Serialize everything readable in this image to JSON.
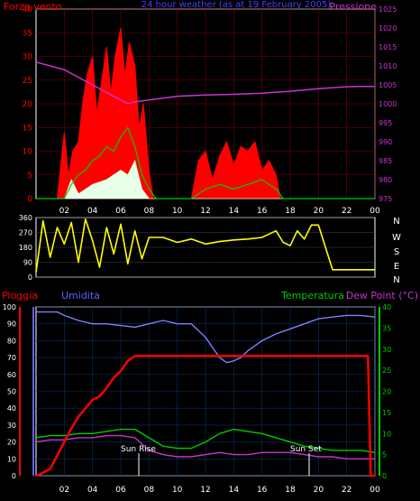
{
  "colors": {
    "wind": "#ff0000",
    "gust_green": "#00cc00",
    "gust_white": "#e8ffe8",
    "pressure": "#cc33cc",
    "direction": "#ffff00",
    "humidity": "#8080ff",
    "rain": "#ff0000",
    "temperature": "#00cc00",
    "dewpoint": "#cc33cc",
    "grid": "#7a0000",
    "axis_red": "#ff0000",
    "axis_blue": "#6060ff",
    "axis_green": "#00cc00",
    "axis_white": "#ffffff"
  },
  "header": {
    "left_title": "Forza vento",
    "center_title": "24 hour weather (as at 19 February 2005)",
    "right_title": "Pressione"
  },
  "direction_letters": [
    "N",
    "W",
    "S",
    "E",
    "N"
  ],
  "bottom_titles": {
    "rain": "Pioggia",
    "humidity": "Umidita",
    "temperature": "Temperatura",
    "dewpoint": "Dew Point (°C)"
  },
  "annotations": {
    "sun_rise": "Sun Rise",
    "sun_set": "Sun Set"
  },
  "chart_data": [
    {
      "type": "line",
      "panel": "wind-pressure",
      "x_ticks": [
        "02",
        "04",
        "06",
        "08",
        "10",
        "12",
        "14",
        "16",
        "18",
        "20",
        "22",
        "00"
      ],
      "ylim_left": [
        0,
        40
      ],
      "yticks_left": [
        0,
        5,
        10,
        15,
        20,
        25,
        30,
        35,
        40
      ],
      "ylim_right": [
        975,
        1025
      ],
      "yticks_right": [
        975,
        980,
        985,
        990,
        995,
        1000,
        1005,
        1010,
        1015,
        1020,
        1025
      ],
      "series": [
        {
          "name": "Pressione",
          "axis": "right",
          "x": [
            0,
            1,
            2,
            3,
            4,
            5,
            6,
            6.5,
            7,
            8,
            9,
            10,
            12,
            14,
            16,
            18,
            20,
            22,
            23,
            24
          ],
          "y": [
            1011,
            1010,
            1009,
            1007,
            1005,
            1003,
            1001,
            1000,
            1000.5,
            1001,
            1001.5,
            1002,
            1002.3,
            1002.5,
            1002.8,
            1003.3,
            1004,
            1004.5,
            1004.6,
            1004.6
          ]
        },
        {
          "name": "Forza vento",
          "axis": "left",
          "x": [
            0,
            1.5,
            2,
            2.3,
            2.6,
            3,
            3.3,
            3.6,
            4,
            4.3,
            4.6,
            5,
            5.3,
            5.6,
            6,
            6.3,
            6.6,
            7,
            7.3,
            7.6,
            8,
            8.3,
            11,
            11.5,
            12,
            12.5,
            13,
            13.5,
            14,
            14.5,
            15,
            15.5,
            16,
            16.5,
            17,
            17.3,
            24
          ],
          "y": [
            0,
            0,
            14,
            5,
            10,
            12,
            20,
            26,
            30,
            18,
            24,
            32,
            22,
            30,
            36,
            26,
            33,
            28,
            15,
            20,
            6,
            0,
            0,
            8,
            10,
            4,
            9,
            12,
            7,
            11,
            10,
            12,
            6,
            8,
            5,
            0,
            0
          ]
        },
        {
          "name": "",
          "axis": "left",
          "x": [
            0,
            2,
            2.5,
            3,
            3.5,
            4,
            4.5,
            5,
            5.5,
            6,
            6.5,
            7,
            7.5,
            8,
            8.5,
            11,
            12,
            13,
            14,
            15,
            16,
            17,
            17.5,
            24
          ],
          "y": [
            0,
            0,
            3,
            5,
            6,
            8,
            9,
            11,
            10,
            13,
            15,
            11,
            5,
            2,
            0,
            0,
            2,
            3,
            2,
            3,
            4,
            2,
            0,
            0
          ]
        },
        {
          "name": "",
          "axis": "left",
          "x": [
            0,
            2,
            2.5,
            3,
            4,
            5,
            6,
            6.5,
            7,
            7.5,
            8,
            24
          ],
          "y": [
            0,
            0,
            4,
            1,
            3,
            4,
            6,
            5,
            8,
            2,
            0,
            0
          ]
        }
      ]
    },
    {
      "type": "line",
      "panel": "direction",
      "ylim": [
        0,
        360
      ],
      "yticks": [
        0,
        90,
        180,
        270,
        360
      ],
      "series": [
        {
          "name": "",
          "x": [
            0,
            0.5,
            1,
            1.5,
            2,
            2.5,
            3,
            3.5,
            4,
            4.5,
            5,
            5.5,
            6,
            6.5,
            7,
            7.5,
            8,
            9,
            10,
            11,
            12,
            13,
            14,
            15,
            16,
            16.5,
            17,
            17.5,
            18,
            18.5,
            19,
            19.5,
            20,
            21,
            22,
            23,
            24
          ],
          "y": [
            30,
            340,
            120,
            300,
            200,
            330,
            90,
            350,
            220,
            60,
            300,
            140,
            320,
            80,
            280,
            110,
            240,
            240,
            210,
            230,
            200,
            215,
            225,
            230,
            240,
            260,
            280,
            210,
            190,
            280,
            230,
            315,
            315,
            45,
            45,
            45,
            45
          ]
        }
      ]
    },
    {
      "type": "line",
      "panel": "rain-humidity-temperature",
      "x_ticks": [
        "02",
        "04",
        "06",
        "08",
        "10",
        "12",
        "14",
        "16",
        "18",
        "20",
        "22",
        "00"
      ],
      "ylim_left": [
        0,
        100
      ],
      "yticks_left": [
        0,
        10,
        20,
        30,
        40,
        50,
        60,
        70,
        80,
        90,
        100
      ],
      "ylim_right": [
        0,
        40
      ],
      "yticks_right": [
        0,
        5,
        10,
        15,
        20,
        25,
        30,
        35,
        40
      ],
      "series": [
        {
          "name": "Umidita",
          "axis": "left",
          "x": [
            0,
            1.5,
            2,
            3,
            4,
            5,
            6,
            7,
            8,
            9,
            10,
            11,
            11.5,
            12,
            12.5,
            13,
            13.5,
            14,
            14.5,
            15,
            16,
            17,
            18,
            19,
            20,
            21,
            22,
            23,
            24
          ],
          "y": [
            97,
            97,
            95,
            92,
            90,
            90,
            89,
            88,
            90,
            92,
            90,
            90,
            86,
            82,
            76,
            70,
            67,
            68,
            70,
            74,
            80,
            84,
            87,
            90,
            93,
            94,
            95,
            95,
            94
          ]
        },
        {
          "name": "Pioggia",
          "axis": "left",
          "x": [
            0,
            0.3,
            1,
            2,
            2.5,
            3,
            3.5,
            4,
            4.5,
            5,
            5.5,
            6,
            6.5,
            7,
            8,
            9,
            10,
            12,
            14,
            16,
            18,
            20,
            22,
            23.5,
            23.7,
            24
          ],
          "y": [
            0,
            1,
            4,
            20,
            28,
            35,
            40,
            45,
            47,
            52,
            58,
            62,
            68,
            71,
            71,
            71,
            71,
            71,
            71,
            71,
            71,
            71,
            71,
            71,
            0,
            0
          ]
        },
        {
          "name": "Temperatura",
          "axis": "right",
          "x": [
            0,
            1,
            2,
            3,
            4,
            5,
            6,
            7,
            8,
            9,
            10,
            11,
            12,
            13,
            14,
            15,
            16,
            17,
            18,
            19,
            20,
            21,
            22,
            23,
            24
          ],
          "y": [
            9,
            9.5,
            9.5,
            10,
            10,
            10.5,
            11,
            11,
            9,
            7,
            6.5,
            6.5,
            8,
            10,
            11,
            10.5,
            10,
            9,
            8,
            7,
            6.5,
            6,
            6,
            6,
            5.5
          ]
        },
        {
          "name": "Dew Point (°C)",
          "axis": "right",
          "x": [
            0,
            1,
            2,
            3,
            4,
            5,
            6,
            7,
            8,
            9,
            10,
            11,
            12,
            13,
            14,
            15,
            16,
            17,
            18,
            19,
            20,
            21,
            22,
            23,
            24
          ],
          "y": [
            8,
            8.5,
            8.5,
            9,
            9,
            9.5,
            9.5,
            9,
            6,
            5,
            4.5,
            4.5,
            5,
            5.5,
            5,
            5,
            5.5,
            5.5,
            5.5,
            5,
            4.5,
            4.5,
            4,
            4,
            4
          ]
        }
      ]
    }
  ]
}
